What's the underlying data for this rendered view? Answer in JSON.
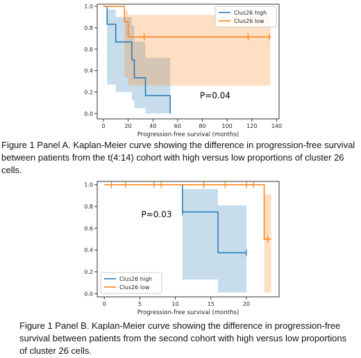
{
  "chart_data": [
    {
      "type": "line",
      "panel": "A",
      "title": "",
      "xlabel": "Progression-free survival (months)",
      "ylabel": "",
      "xlim": [
        -5,
        142
      ],
      "ylim": [
        -0.05,
        1.02
      ],
      "x_ticks": [
        0,
        20,
        40,
        60,
        80,
        100,
        120,
        140
      ],
      "y_ticks": [
        0.0,
        0.2,
        0.4,
        0.6,
        0.8,
        1.0
      ],
      "x_tick_labels": [
        "0",
        "20",
        "40",
        "60",
        "80",
        "100",
        "120",
        "140"
      ],
      "y_tick_labels": [
        "0.0",
        "0.2",
        "0.4",
        "0.6",
        "0.8",
        "1.0"
      ],
      "grid": false,
      "legend_position": "top-right",
      "annotation": "P=0.04",
      "annotation_x": 78,
      "annotation_y": 0.14,
      "series": [
        {
          "name": "Clus26 high",
          "color": "#1f77b4",
          "steps": [
            [
              0,
              1.0
            ],
            [
              3,
              0.833
            ],
            [
              10,
              0.667
            ],
            [
              23,
              0.5
            ],
            [
              25,
              0.333
            ],
            [
              34,
              0.167
            ],
            [
              54,
              0.0
            ]
          ],
          "end_x": 54,
          "censored": [],
          "ci": [
            [
              0,
              1.0,
              1.0
            ],
            [
              3,
              0.27,
              0.97
            ],
            [
              10,
              0.2,
              0.9
            ],
            [
              23,
              0.12,
              0.82
            ],
            [
              25,
              0.05,
              0.67
            ],
            [
              34,
              0.0,
              0.52
            ],
            [
              54,
              0.0,
              0.52
            ]
          ]
        },
        {
          "name": "Clus26 low",
          "color": "#ff7f0e",
          "steps": [
            [
              0,
              1.0
            ],
            [
              17,
              0.857
            ],
            [
              20,
              0.714
            ],
            [
              135,
              0.714
            ]
          ],
          "end_x": 135,
          "censored": [
            [
              33,
              0.714
            ],
            [
              117,
              0.714
            ],
            [
              134,
              0.714
            ]
          ],
          "ci": [
            [
              0,
              1.0,
              1.0
            ],
            [
              17,
              0.34,
              0.96
            ],
            [
              20,
              0.26,
              0.92
            ],
            [
              135,
              0.26,
              0.92
            ]
          ]
        }
      ]
    },
    {
      "type": "line",
      "panel": "B",
      "title": "",
      "xlabel": "Progression-free survival (months)",
      "ylabel": "",
      "xlim": [
        -1,
        24.6
      ],
      "ylim": [
        -0.03,
        1.03
      ],
      "x_ticks": [
        0,
        5,
        10,
        15,
        20
      ],
      "y_ticks": [
        0.0,
        0.2,
        0.4,
        0.6,
        0.8,
        1.0
      ],
      "x_tick_labels": [
        "0",
        "5",
        "10",
        "15",
        "20"
      ],
      "y_tick_labels": [
        "0.0",
        "0.2",
        "0.4",
        "0.6",
        "0.8",
        "1.0"
      ],
      "grid": false,
      "legend_position": "bottom-left",
      "annotation": "P=0.03",
      "annotation_x": 5.2,
      "annotation_y": 0.7,
      "series": [
        {
          "name": "Clus26 high",
          "color": "#1f77b4",
          "steps": [
            [
              0,
              1.0
            ],
            [
              11,
              0.75
            ],
            [
              16,
              0.375
            ],
            [
              20,
              0.375
            ]
          ],
          "end_x": 20,
          "censored": [
            [
              11,
              0.75
            ],
            [
              20,
              0.375
            ]
          ],
          "ci": [
            [
              0,
              1.0,
              1.0
            ],
            [
              11,
              0.13,
              0.96
            ],
            [
              16,
              0.01,
              0.81
            ],
            [
              20,
              0.01,
              0.81
            ]
          ]
        },
        {
          "name": "Clus26 low",
          "color": "#ff7f0e",
          "steps": [
            [
              0,
              1.0
            ],
            [
              22.5,
              0.5
            ],
            [
              23.5,
              0.5
            ]
          ],
          "end_x": 23.5,
          "censored": [
            [
              1,
              1.0
            ],
            [
              3,
              1.0
            ],
            [
              7,
              1.0
            ],
            [
              8,
              1.0
            ],
            [
              14,
              1.0
            ],
            [
              17,
              1.0
            ],
            [
              20,
              1.0
            ],
            [
              21,
              1.0
            ],
            [
              23,
              0.5
            ]
          ],
          "ci": [
            [
              0,
              1.0,
              1.0
            ],
            [
              22.5,
              0.01,
              0.91
            ],
            [
              23.5,
              0.01,
              0.91
            ]
          ]
        }
      ]
    }
  ],
  "captions": {
    "panel_a": "Figure 1 Panel A. Kaplan-Meier curve showing the difference in progression-free survival between patients from the t(4:14) cohort with high versus low proportions of cluster 26 cells.",
    "panel_b": "Figure 1 Panel B. Kaplan-Meier curve showing the difference in progression-free survival between patients from the second cohort with high versus low proportions of cluster 26 cells."
  }
}
